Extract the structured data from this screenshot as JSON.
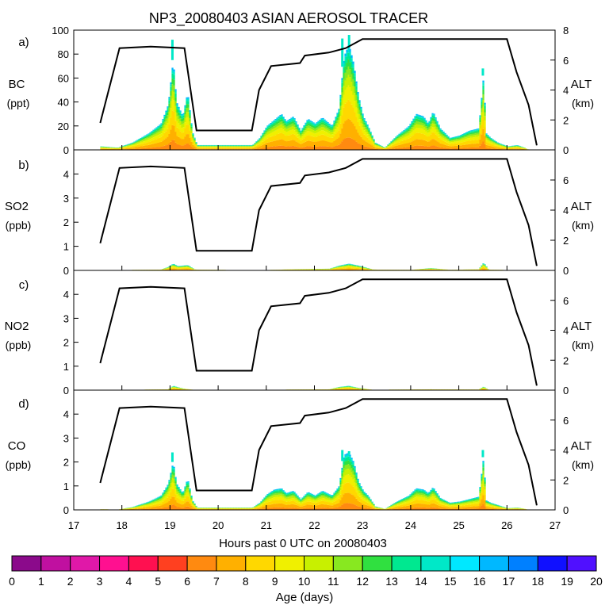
{
  "chart_data": {
    "type": "area",
    "title": "NP3_20080403 ASIAN AEROSOL TRACER",
    "xlabel": "Hours past 0 UTC on 20080403",
    "xlim": [
      17,
      27
    ],
    "x_ticks": [
      "17",
      "18",
      "19",
      "20",
      "21",
      "22",
      "23",
      "24",
      "25",
      "26",
      "27"
    ],
    "altitude_axis": {
      "label": "ALT",
      "unit": "(km)",
      "ylim": [
        0,
        8
      ],
      "ticks": [
        "0",
        "2",
        "4",
        "6",
        "8"
      ]
    },
    "altitude_track": {
      "x": [
        17.55,
        17.95,
        18.6,
        19.3,
        19.55,
        20.7,
        20.85,
        21.1,
        21.7,
        21.8,
        22.3,
        22.65,
        23.0,
        26.0,
        26.2,
        26.45,
        26.62
      ],
      "km": [
        1.8,
        6.8,
        6.9,
        6.8,
        1.3,
        1.3,
        4.0,
        5.6,
        5.8,
        6.3,
        6.5,
        6.8,
        7.4,
        7.4,
        5.2,
        3.0,
        0.3
      ]
    },
    "panels": [
      {
        "id": "a)",
        "name": "BC",
        "unit": "(ppt)",
        "ylim": [
          0,
          100
        ],
        "y_ticks": [
          "0",
          "20",
          "40",
          "60",
          "80",
          "100"
        ],
        "tracer_profile": {
          "x": [
            17.55,
            17.9,
            18.2,
            18.55,
            18.8,
            18.95,
            19.05,
            19.12,
            19.25,
            19.35,
            19.45,
            19.55,
            20.7,
            20.85,
            21.0,
            21.15,
            21.3,
            21.4,
            21.55,
            21.7,
            21.85,
            22.0,
            22.15,
            22.35,
            22.5,
            22.6,
            22.7,
            22.8,
            22.9,
            23.0,
            23.1,
            23.25,
            23.45,
            23.7,
            23.95,
            24.1,
            24.25,
            24.35,
            24.45,
            24.6,
            24.8,
            25.0,
            25.2,
            25.4,
            25.5,
            25.55,
            25.65,
            25.8,
            26.0,
            26.2,
            26.35,
            26.45
          ],
          "values": [
            3,
            2,
            6,
            14,
            22,
            38,
            75,
            40,
            28,
            48,
            15,
            4,
            4,
            10,
            20,
            25,
            30,
            24,
            28,
            16,
            26,
            22,
            27,
            20,
            35,
            78,
            88,
            72,
            45,
            28,
            20,
            6,
            2,
            12,
            20,
            30,
            28,
            22,
            32,
            18,
            10,
            12,
            16,
            18,
            62,
            14,
            10,
            6,
            3,
            4,
            2,
            0
          ],
          "peak_marks": [
            {
              "x": 19.05,
              "v": 92
            },
            {
              "x": 22.58,
              "v": 93
            },
            {
              "x": 22.72,
              "v": 96
            },
            {
              "x": 25.5,
              "v": 68
            }
          ]
        }
      },
      {
        "id": "b)",
        "name": "SO2",
        "unit": "(ppb)",
        "ylim": [
          0,
          5
        ],
        "y_ticks": [
          "0",
          "1",
          "2",
          "3",
          "4"
        ],
        "tracer_profile": {
          "x": [
            17.55,
            18.8,
            18.95,
            19.05,
            19.15,
            19.35,
            19.5,
            20.8,
            21.5,
            22.3,
            22.5,
            22.7,
            22.9,
            23.2,
            24.0,
            24.4,
            24.8,
            25.4,
            25.5,
            25.6,
            26.2,
            26.45
          ],
          "values": [
            0.02,
            0.05,
            0.15,
            0.28,
            0.18,
            0.22,
            0.05,
            0.02,
            0.06,
            0.08,
            0.2,
            0.28,
            0.2,
            0.05,
            0.04,
            0.1,
            0.04,
            0.06,
            0.32,
            0.05,
            0.02,
            0
          ]
        }
      },
      {
        "id": "c)",
        "name": "NO2",
        "unit": "(ppb)",
        "ylim": [
          0,
          5
        ],
        "y_ticks": [
          "0",
          "1",
          "2",
          "3",
          "4"
        ],
        "tracer_profile": {
          "x": [
            17.55,
            18.95,
            19.05,
            19.25,
            19.5,
            20.8,
            21.5,
            22.3,
            22.5,
            22.7,
            22.9,
            23.2,
            24.4,
            25.4,
            25.5,
            25.6,
            26.45
          ],
          "values": [
            0.01,
            0.05,
            0.18,
            0.08,
            0.02,
            0.01,
            0.04,
            0.05,
            0.14,
            0.18,
            0.1,
            0.03,
            0.05,
            0.04,
            0.15,
            0.03,
            0
          ]
        }
      },
      {
        "id": "d)",
        "name": "CO",
        "unit": "(ppb)",
        "ylim": [
          0,
          5
        ],
        "y_ticks": [
          "0",
          "1",
          "2",
          "3",
          "4"
        ],
        "tracer_profile": {
          "x": [
            17.55,
            17.9,
            18.2,
            18.55,
            18.8,
            18.95,
            19.05,
            19.12,
            19.25,
            19.35,
            19.45,
            19.55,
            20.7,
            20.85,
            21.0,
            21.15,
            21.3,
            21.4,
            21.55,
            21.7,
            21.85,
            22.0,
            22.15,
            22.35,
            22.5,
            22.6,
            22.7,
            22.8,
            22.9,
            23.0,
            23.1,
            23.25,
            23.45,
            23.7,
            23.95,
            24.1,
            24.25,
            24.35,
            24.45,
            24.6,
            24.8,
            25.0,
            25.2,
            25.4,
            25.5,
            25.55,
            25.65,
            25.8,
            26.0,
            26.2,
            26.35,
            26.45
          ],
          "values": [
            0.04,
            0.03,
            0.12,
            0.35,
            0.6,
            1.1,
            2.0,
            1.1,
            0.7,
            1.3,
            0.4,
            0.1,
            0.1,
            0.3,
            0.65,
            0.85,
            0.9,
            0.7,
            0.8,
            0.45,
            0.75,
            0.6,
            0.8,
            0.6,
            1.0,
            2.3,
            2.4,
            2.0,
            1.2,
            0.8,
            0.6,
            0.15,
            0.05,
            0.35,
            0.6,
            0.9,
            0.85,
            0.7,
            0.95,
            0.5,
            0.3,
            0.35,
            0.45,
            0.55,
            2.2,
            0.4,
            0.3,
            0.2,
            0.08,
            0.1,
            0.06,
            0
          ],
          "peak_marks": [
            {
              "x": 19.05,
              "v": 2.4
            },
            {
              "x": 22.58,
              "v": 2.5
            },
            {
              "x": 22.72,
              "v": 2.45
            },
            {
              "x": 25.5,
              "v": 2.5
            }
          ]
        }
      }
    ],
    "colorbar": {
      "label": "Age (days)",
      "ticks": [
        "0",
        "1",
        "2",
        "3",
        "4",
        "5",
        "6",
        "7",
        "8",
        "9",
        "10",
        "11",
        "12",
        "13",
        "14",
        "15",
        "16",
        "17",
        "18",
        "19",
        "20"
      ],
      "colors": [
        "#8b0a8b",
        "#c010a0",
        "#e018a8",
        "#ff1090",
        "#ff1050",
        "#ff4020",
        "#ff8a10",
        "#ffb000",
        "#ffd800",
        "#f0f000",
        "#c8f000",
        "#88e820",
        "#30e040",
        "#00e890",
        "#00e8c8",
        "#00e8ff",
        "#00b8ff",
        "#0080ff",
        "#1010ff",
        "#5010ff"
      ]
    },
    "stack_layers": [
      {
        "age": "6-7",
        "color": "#ff8a10",
        "fraction": 0.12
      },
      {
        "age": "7-8",
        "color": "#ffb000",
        "fraction": 0.18
      },
      {
        "age": "8-9",
        "color": "#ffd800",
        "fraction": 0.18
      },
      {
        "age": "9-10",
        "color": "#f0f000",
        "fraction": 0.14
      },
      {
        "age": "10-11",
        "color": "#c8f000",
        "fraction": 0.1
      },
      {
        "age": "11-12",
        "color": "#88e820",
        "fraction": 0.08
      },
      {
        "age": "12-13",
        "color": "#30e040",
        "fraction": 0.07
      },
      {
        "age": "13-14",
        "color": "#00e890",
        "fraction": 0.06
      },
      {
        "age": "14-15",
        "color": "#00e8c8",
        "fraction": 0.04
      },
      {
        "age": "15-17",
        "color": "#00b8ff",
        "fraction": 0.03
      }
    ]
  }
}
